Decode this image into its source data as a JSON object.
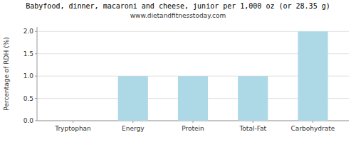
{
  "chart_data": {
    "type": "bar",
    "title": "Babyfood, dinner, macaroni and cheese, junior per 1,000 oz (or 28.35 g)",
    "subtitle": "www.dietandfitnesstoday.com",
    "categories": [
      "Tryptophan",
      "Energy",
      "Protein",
      "Total-Fat",
      "Carbohydrate"
    ],
    "values": [
      0.0,
      1.0,
      1.0,
      1.0,
      2.0
    ],
    "color": "#add8e6",
    "ylabel": "Percentage of RDH (%)",
    "ylim": [
      0,
      2.1
    ],
    "yticks": [
      {
        "value": 0,
        "label": "0.0"
      },
      0.5,
      {
        "value": 1,
        "label": "1.0"
      },
      1.5,
      {
        "value": 2,
        "label": "2.0"
      }
    ],
    "grid": true
  }
}
